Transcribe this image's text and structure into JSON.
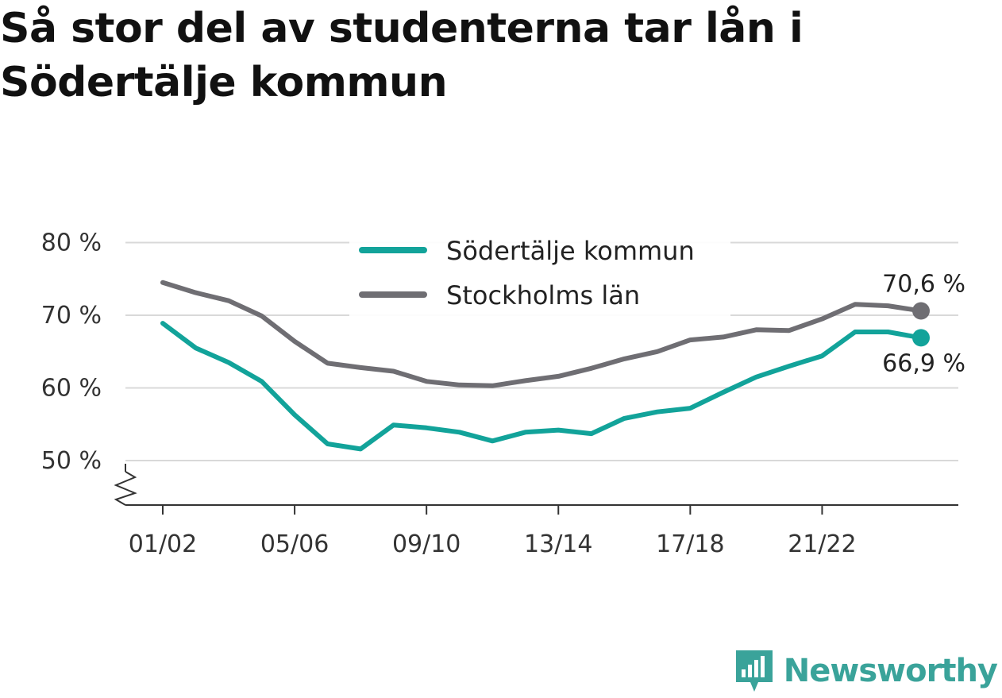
{
  "title": "Så stor del av studenterna tar lån i Södertälje kommun",
  "brand": {
    "name": "Newsworthy",
    "icon": "newsworthy-logo-icon",
    "color": "#3aa39a"
  },
  "chart_data": {
    "type": "line",
    "title": "Så stor del av studenterna tar lån i Södertälje kommun",
    "xlabel": "",
    "ylabel": "",
    "ylim": [
      44,
      80
    ],
    "y_ticks": [
      "50 %",
      "60 %",
      "70 %",
      "80 %"
    ],
    "y_tick_values": [
      50,
      60,
      70,
      80
    ],
    "y_axis_break": true,
    "x_tick_labels": [
      "01/02",
      "05/06",
      "09/10",
      "13/14",
      "17/18",
      "21/22"
    ],
    "x": [
      "01/02",
      "02/03",
      "03/04",
      "04/05",
      "05/06",
      "06/07",
      "07/08",
      "08/09",
      "09/10",
      "10/11",
      "11/12",
      "12/13",
      "13/14",
      "14/15",
      "15/16",
      "16/17",
      "17/18",
      "18/19",
      "19/20",
      "20/21",
      "21/22",
      "22/23",
      "23/24",
      "24/25"
    ],
    "grid": true,
    "legend_position": "top-center",
    "series": [
      {
        "name": "Södertälje kommun",
        "color": "#12a39a",
        "values": [
          68.9,
          65.5,
          63.5,
          60.9,
          56.3,
          52.3,
          51.6,
          54.9,
          54.5,
          53.9,
          52.7,
          53.9,
          54.2,
          53.7,
          55.8,
          56.7,
          57.2,
          59.4,
          61.5,
          63.0,
          64.4,
          67.7,
          67.7,
          66.9
        ],
        "end_label": "66,9 %"
      },
      {
        "name": "Stockholms län",
        "color": "#6f6e73",
        "values": [
          74.5,
          73.1,
          72.0,
          69.9,
          66.4,
          63.4,
          62.8,
          62.3,
          60.9,
          60.4,
          60.3,
          61.0,
          61.6,
          62.7,
          64.0,
          65.0,
          66.6,
          67.0,
          68.0,
          67.9,
          69.5,
          71.5,
          71.3,
          70.6
        ],
        "end_label": "70,6 %"
      }
    ]
  }
}
